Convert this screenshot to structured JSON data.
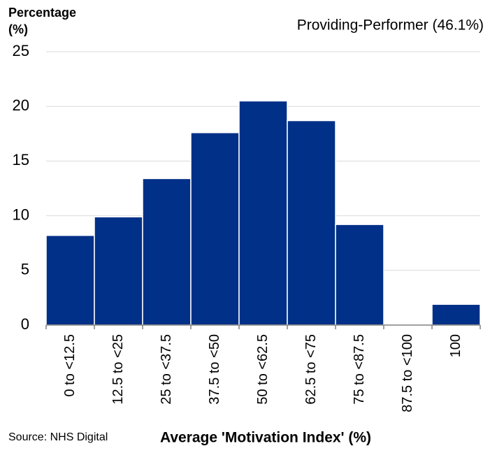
{
  "chart_data": {
    "type": "bar",
    "ylabel": "Percentage (%)",
    "annotation": "Providing-Performer (46.1%)",
    "xlabel": "Average 'Motivation Index' (%)",
    "source": "Source: NHS Digital",
    "categories": [
      "0 to <12.5",
      "12.5 to <25",
      "25 to <37.5",
      "37.5 to <50",
      "50 to <62.5",
      "62.5 to <75",
      "75 to <87.5",
      "87.5 to <100",
      "100"
    ],
    "values": [
      8.2,
      9.9,
      13.4,
      17.6,
      20.5,
      18.7,
      9.2,
      0,
      1.9
    ],
    "color": "#003087",
    "ylim": [
      0,
      25
    ],
    "yticks": [
      0,
      5,
      10,
      15,
      20,
      25
    ],
    "grid": true
  }
}
